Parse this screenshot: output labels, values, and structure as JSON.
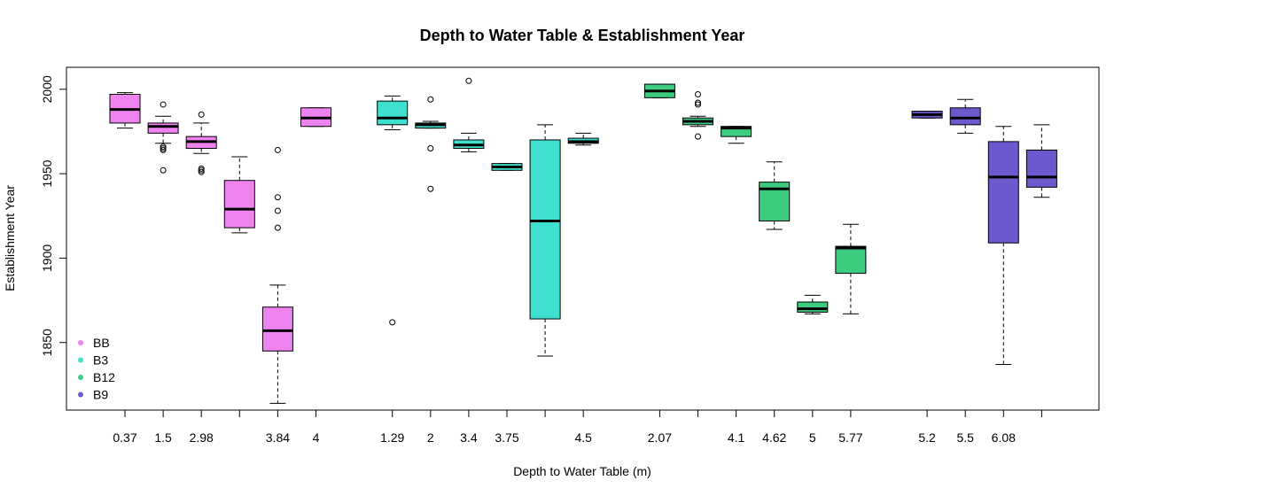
{
  "chart_data": {
    "type": "boxplot",
    "title": "Depth to Water Table & Establishment Year",
    "xlabel": "Depth to Water Table (m)",
    "ylabel": "Establishment Year",
    "ylim": [
      1810,
      2013
    ],
    "y_ticks": [
      1850,
      1900,
      1950,
      2000
    ],
    "legend": {
      "position": "bottom-left",
      "entries": [
        {
          "name": "BB",
          "color": "#EE82EE"
        },
        {
          "name": "B3",
          "color": "#40E0D0"
        },
        {
          "name": "B12",
          "color": "#3CCB7F"
        },
        {
          "name": "B9",
          "color": "#6A5ACD"
        }
      ]
    },
    "groups": [
      {
        "name": "BB",
        "color": "#EE82EE",
        "boxes": [
          {
            "label": "0.37",
            "whisker_low": 1977,
            "q1": 1980,
            "median": 1988,
            "q3": 1997,
            "whisker_high": 1998,
            "outliers": []
          },
          {
            "label": "1.5",
            "whisker_low": 1968,
            "q1": 1974,
            "median": 1978,
            "q3": 1980,
            "whisker_high": 1984,
            "outliers": [
              1991,
              1966,
              1965,
              1964,
              1952
            ]
          },
          {
            "label": "2.98",
            "whisker_low": 1962,
            "q1": 1965,
            "median": 1969,
            "q3": 1972,
            "whisker_high": 1980,
            "outliers": [
              1985,
              1953,
              1952,
              1951
            ]
          },
          {
            "label": "",
            "whisker_low": 1915,
            "q1": 1918,
            "median": 1929,
            "q3": 1946,
            "whisker_high": 1960,
            "outliers": []
          },
          {
            "label": "3.84",
            "whisker_low": 1814,
            "q1": 1845,
            "median": 1857,
            "q3": 1871,
            "whisker_high": 1884,
            "outliers": [
              1964,
              1936,
              1928,
              1918
            ]
          },
          {
            "label": "4",
            "whisker_low": 1978,
            "q1": 1978,
            "median": 1983,
            "q3": 1989,
            "whisker_high": 1989,
            "outliers": []
          }
        ]
      },
      {
        "name": "B3",
        "color": "#40E0D0",
        "boxes": [
          {
            "label": "1.29",
            "whisker_low": 1976,
            "q1": 1979,
            "median": 1983,
            "q3": 1993,
            "whisker_high": 1996,
            "outliers": [
              1862
            ]
          },
          {
            "label": "2",
            "whisker_low": 1977,
            "q1": 1977,
            "median": 1979,
            "q3": 1980,
            "whisker_high": 1981,
            "outliers": [
              1994,
              1965,
              1941
            ]
          },
          {
            "label": "3.4",
            "whisker_low": 1963,
            "q1": 1965,
            "median": 1967,
            "q3": 1970,
            "whisker_high": 1974,
            "outliers": [
              2005
            ]
          },
          {
            "label": "3.75",
            "whisker_low": 1952,
            "q1": 1952,
            "median": 1954,
            "q3": 1956,
            "whisker_high": 1956,
            "outliers": []
          },
          {
            "label": "",
            "whisker_low": 1842,
            "q1": 1864,
            "median": 1922,
            "q3": 1970,
            "whisker_high": 1979,
            "outliers": []
          },
          {
            "label": "4.5",
            "whisker_low": 1967,
            "q1": 1968,
            "median": 1969,
            "q3": 1971,
            "whisker_high": 1974,
            "outliers": []
          }
        ]
      },
      {
        "name": "B12",
        "color": "#3CCB7F",
        "boxes": [
          {
            "label": "2.07",
            "whisker_low": 1995,
            "q1": 1995,
            "median": 1999,
            "q3": 2003,
            "whisker_high": 2003,
            "outliers": []
          },
          {
            "label": "",
            "whisker_low": 1978,
            "q1": 1979,
            "median": 1981,
            "q3": 1983,
            "whisker_high": 1984,
            "outliers": [
              1997,
              1992,
              1991,
              1972
            ]
          },
          {
            "label": "4.1",
            "whisker_low": 1968,
            "q1": 1972,
            "median": 1977,
            "q3": 1978,
            "whisker_high": 1978,
            "outliers": []
          },
          {
            "label": "4.62",
            "whisker_low": 1917,
            "q1": 1922,
            "median": 1941,
            "q3": 1945,
            "whisker_high": 1957,
            "outliers": []
          },
          {
            "label": "5",
            "whisker_low": 1867,
            "q1": 1868,
            "median": 1870,
            "q3": 1874,
            "whisker_high": 1878,
            "outliers": []
          },
          {
            "label": "5.77",
            "whisker_low": 1867,
            "q1": 1891,
            "median": 1906,
            "q3": 1907,
            "whisker_high": 1920,
            "outliers": []
          }
        ]
      },
      {
        "name": "B9",
        "color": "#6A5ACD",
        "boxes": [
          {
            "label": "5.2",
            "whisker_low": 1983,
            "q1": 1983,
            "median": 1985,
            "q3": 1987,
            "whisker_high": 1987,
            "outliers": []
          },
          {
            "label": "5.5",
            "whisker_low": 1974,
            "q1": 1979,
            "median": 1983,
            "q3": 1989,
            "whisker_high": 1994,
            "outliers": []
          },
          {
            "label": "6.08",
            "whisker_low": 1837,
            "q1": 1909,
            "median": 1948,
            "q3": 1969,
            "whisker_high": 1978,
            "outliers": []
          },
          {
            "label": "",
            "whisker_low": 1936,
            "q1": 1942,
            "median": 1948,
            "q3": 1964,
            "whisker_high": 1979,
            "outliers": []
          }
        ]
      }
    ]
  }
}
